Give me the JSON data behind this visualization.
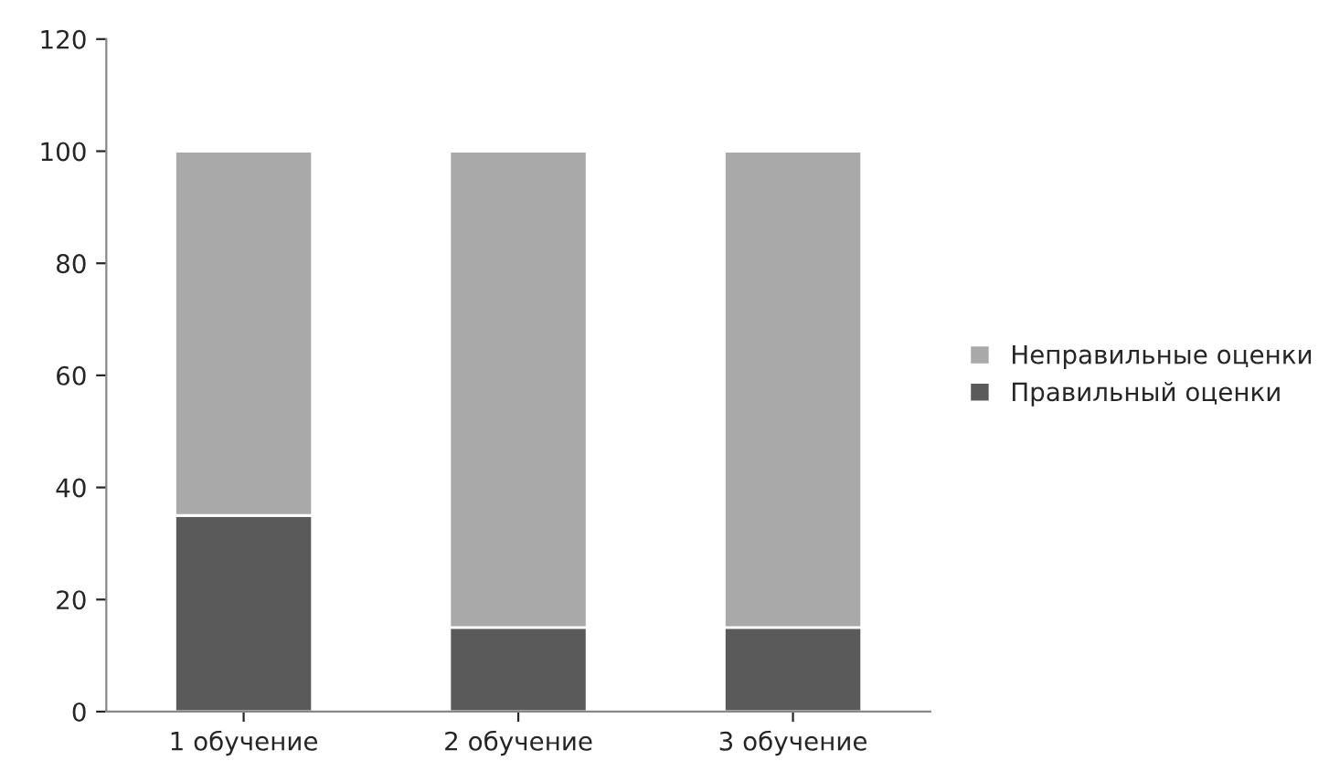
{
  "chart_data": {
    "type": "bar",
    "stacked": true,
    "categories": [
      "1 обучение",
      "2 обучение",
      "3 обучение"
    ],
    "series": [
      {
        "name": "Правильный оценки",
        "color": "#5a5a5a",
        "values": [
          35,
          15,
          15
        ]
      },
      {
        "name": "Неправильные оценки",
        "color": "#a9a9a9",
        "values": [
          65,
          85,
          85
        ]
      }
    ],
    "ylim": [
      0,
      120
    ],
    "yticks": [
      0,
      20,
      40,
      60,
      80,
      100,
      120
    ],
    "grid": false,
    "legend": "right"
  }
}
